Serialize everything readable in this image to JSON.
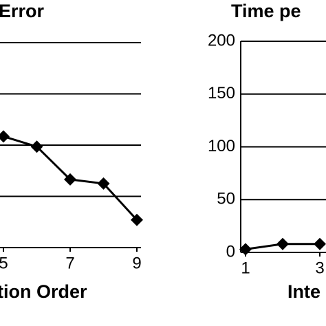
{
  "chart_data": [
    {
      "type": "line",
      "title": "Error",
      "xlabel": "tion Order",
      "x": [
        5,
        6,
        7,
        8,
        9
      ],
      "values": [
        2.17,
        1.97,
        1.33,
        1.25,
        0.54
      ],
      "color": "#000000",
      "xlim": [
        1,
        9
      ],
      "xticks": [
        5,
        7,
        9
      ],
      "ylim": [
        0,
        4
      ],
      "yticks": [
        1,
        2,
        3,
        4
      ],
      "grid": true,
      "show_ytick_labels": false
    },
    {
      "type": "line",
      "title": "Time pe",
      "xlabel": "Inte",
      "x": [
        1,
        2,
        3
      ],
      "values": [
        3,
        8,
        8
      ],
      "color": "#000000",
      "xlim": [
        1,
        9
      ],
      "xticks": [
        1,
        3
      ],
      "ylim": [
        0,
        200
      ],
      "yticks": [
        0,
        50,
        100,
        150,
        200
      ],
      "grid": true,
      "show_ytick_labels": true
    }
  ]
}
